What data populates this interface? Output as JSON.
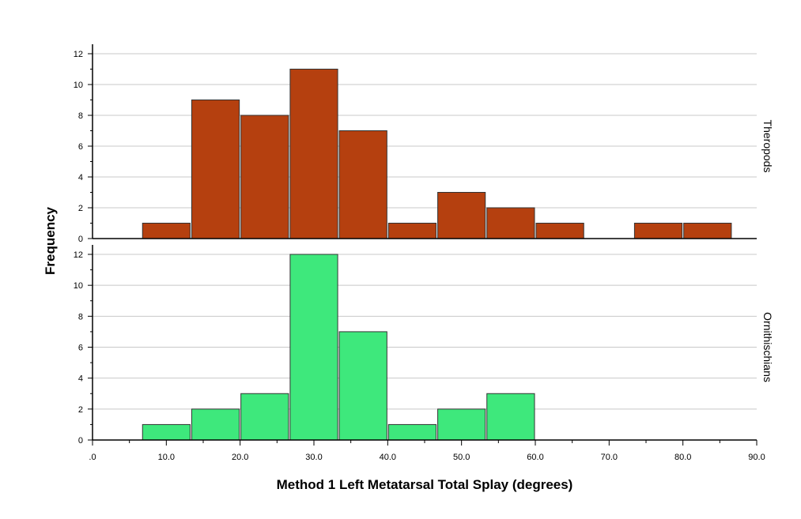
{
  "chart_data": {
    "type": "bar",
    "subtype": "paneled-histogram",
    "xlabel": "Method 1 Left Metatarsal Total Splay (degrees)",
    "ylabel": "Frequency",
    "xlim": [
      0,
      90
    ],
    "xticks": [
      0,
      10,
      20,
      30,
      40,
      50,
      60,
      70,
      80,
      90
    ],
    "xtick_labels": [
      ".0",
      "10.0",
      "20.0",
      "30.0",
      "40.0",
      "50.0",
      "60.0",
      "70.0",
      "80.0",
      "90.0"
    ],
    "ylim": [
      0,
      12
    ],
    "yticks": [
      0,
      2,
      4,
      6,
      8,
      10,
      12
    ],
    "grid": "horizontal",
    "bin_edges": [
      6.67,
      13.33,
      20,
      26.67,
      33.33,
      40,
      46.67,
      53.33,
      60,
      66.67,
      73.33,
      80,
      86.67
    ],
    "panels": [
      {
        "name": "Theropods",
        "color": "#B5400F",
        "values": [
          1,
          9,
          8,
          11,
          7,
          1,
          3,
          2,
          1,
          0,
          1,
          1
        ]
      },
      {
        "name": "Ornithischians",
        "color": "#3EE87C",
        "values": [
          1,
          2,
          3,
          12,
          7,
          1,
          2,
          3,
          0,
          0,
          0,
          0
        ]
      }
    ]
  }
}
